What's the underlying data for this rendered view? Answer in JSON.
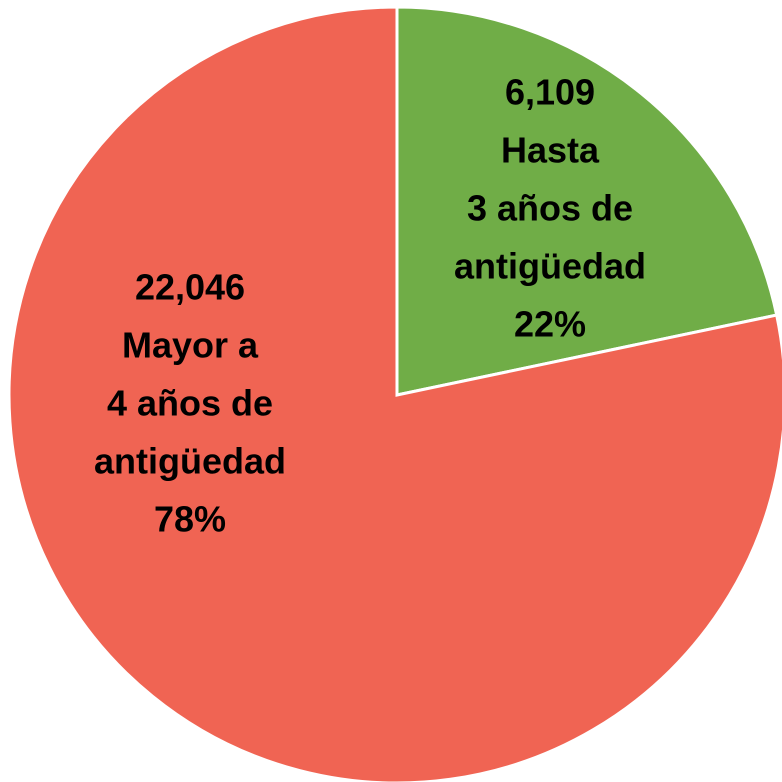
{
  "chart_data": {
    "type": "pie",
    "categories": [
      [
        "Hasta",
        "3 años de",
        "antigüedad"
      ],
      [
        "Mayor a",
        "4 años de",
        "antigüedad"
      ]
    ],
    "values": [
      6109,
      22046
    ],
    "value_labels": [
      "6,109",
      "22,046"
    ],
    "percent_labels": [
      "22%",
      "78%"
    ],
    "colors": [
      "#70ad47",
      "#f06453"
    ]
  }
}
